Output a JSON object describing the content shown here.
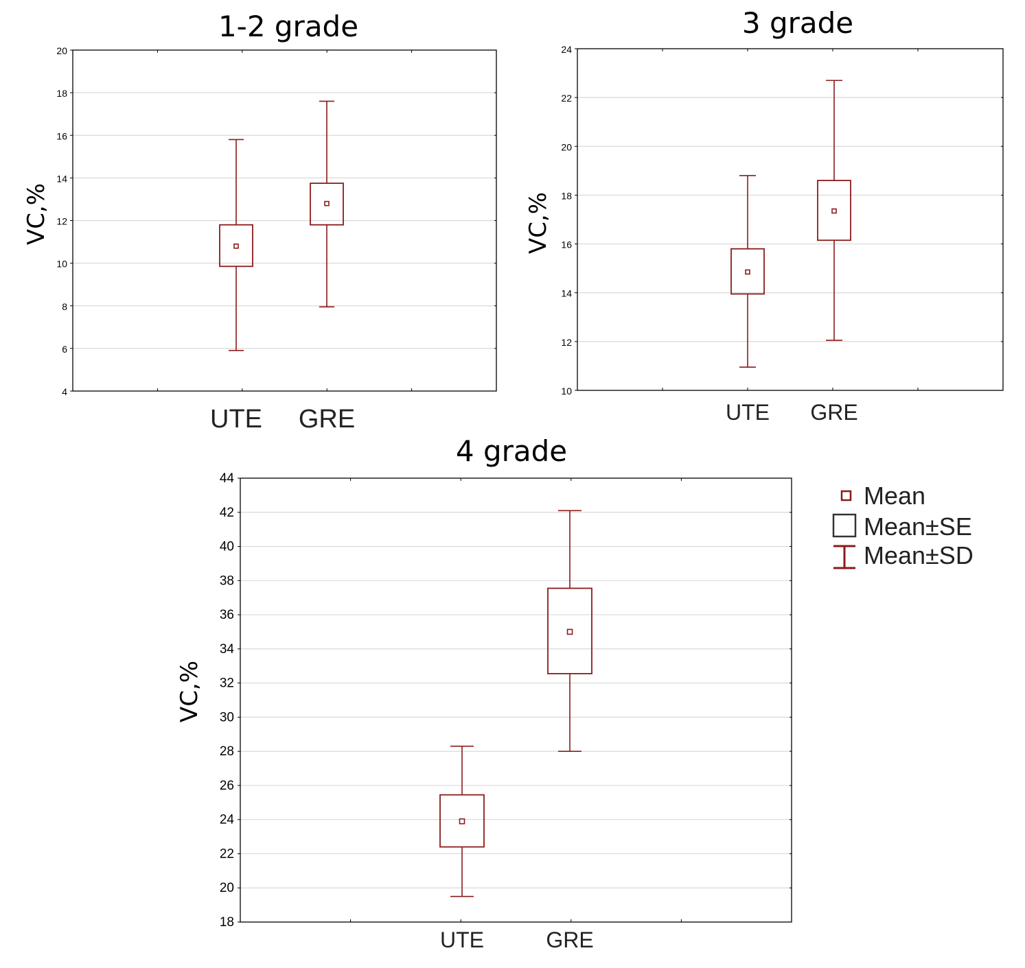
{
  "chart_data": [
    {
      "type": "box",
      "title": "1-2 grade",
      "ylabel": "VC,%",
      "categories": [
        "UTE",
        "GRE"
      ],
      "ylim": [
        4,
        20
      ],
      "yticks": [
        "4",
        "6",
        "8",
        "10",
        "12",
        "14",
        "16",
        "18",
        "20"
      ],
      "grid": true,
      "series": [
        {
          "category": "UTE",
          "mean": 10.8,
          "se_low": 9.85,
          "se_high": 11.8,
          "sd_low": 5.9,
          "sd_high": 15.8
        },
        {
          "category": "GRE",
          "mean": 12.8,
          "se_low": 11.8,
          "se_high": 13.75,
          "sd_low": 7.95,
          "sd_high": 17.6
        }
      ]
    },
    {
      "type": "box",
      "title": "3 grade",
      "ylabel": "VC,%",
      "categories": [
        "UTE",
        "GRE"
      ],
      "ylim": [
        10,
        24
      ],
      "yticks": [
        "10",
        "12",
        "14",
        "16",
        "18",
        "20",
        "22",
        "24"
      ],
      "grid": true,
      "series": [
        {
          "category": "UTE",
          "mean": 14.85,
          "se_low": 13.95,
          "se_high": 15.8,
          "sd_low": 10.95,
          "sd_high": 18.8
        },
        {
          "category": "GRE",
          "mean": 17.35,
          "se_low": 16.15,
          "se_high": 18.6,
          "sd_low": 12.05,
          "sd_high": 22.7
        }
      ]
    },
    {
      "type": "box",
      "title": "4 grade",
      "ylabel": "VC,%",
      "categories": [
        "UTE",
        "GRE"
      ],
      "ylim": [
        18,
        44
      ],
      "yticks": [
        "18",
        "20",
        "22",
        "24",
        "26",
        "28",
        "30",
        "32",
        "34",
        "36",
        "38",
        "40",
        "42",
        "44"
      ],
      "grid": true,
      "series": [
        {
          "category": "UTE",
          "mean": 23.9,
          "se_low": 22.4,
          "se_high": 25.45,
          "sd_low": 19.5,
          "sd_high": 28.3
        },
        {
          "category": "GRE",
          "mean": 35.0,
          "se_low": 32.55,
          "se_high": 37.55,
          "sd_low": 28.0,
          "sd_high": 42.1
        }
      ]
    }
  ],
  "legend": {
    "mean_label": "Mean",
    "se_label": "Mean±SE",
    "sd_label": "Mean±SD",
    "placement": "right of 4 grade chart"
  },
  "colors": {
    "marker": "#8b1a1a",
    "grid": "#d9d9d9",
    "axis": "#000000"
  }
}
